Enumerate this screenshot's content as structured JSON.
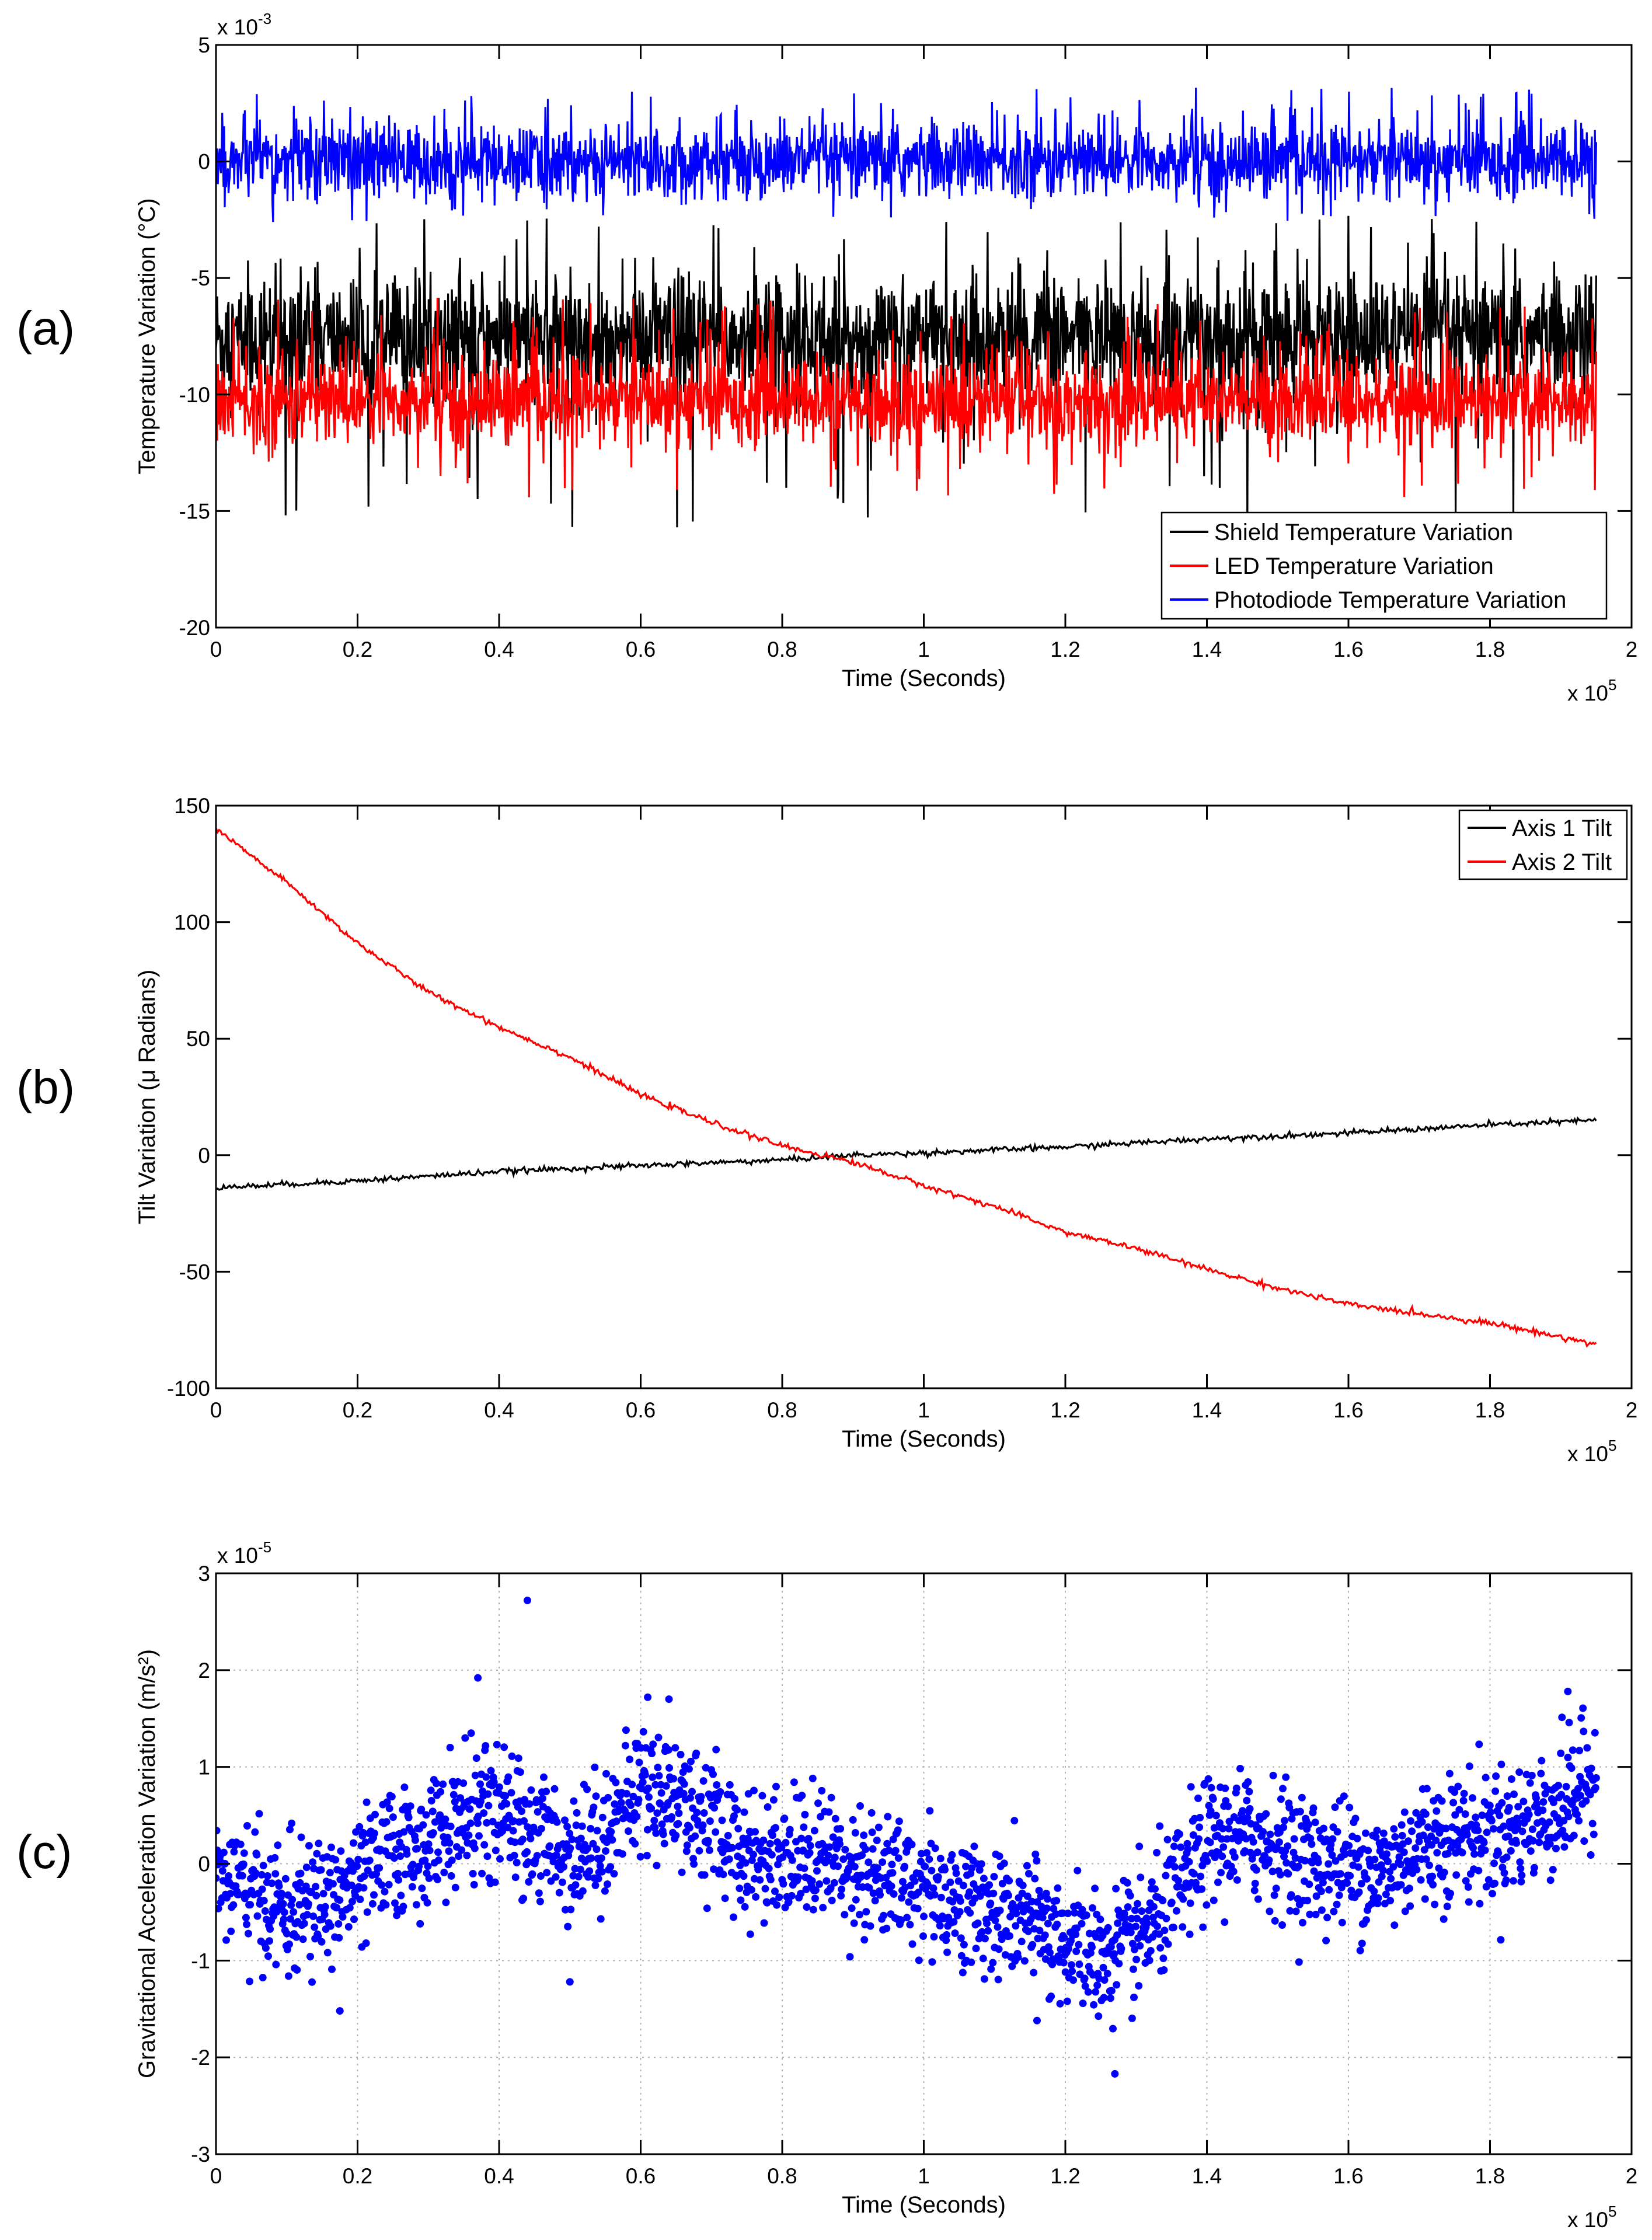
{
  "chart_data": [
    {
      "panel": "(a)",
      "type": "line",
      "title": "",
      "xlabel": "Time (Seconds)",
      "ylabel": "Temperature Variation (°C)",
      "x_multiplier": {
        "base": "x 10",
        "exp": "5"
      },
      "y_multiplier": {
        "base": "x 10",
        "exp": "-3"
      },
      "xlim": [
        0,
        2
      ],
      "ylim": [
        -20,
        5
      ],
      "x_ticks": [
        "0",
        "0.2",
        "0.4",
        "0.6",
        "0.8",
        "1",
        "1.2",
        "1.4",
        "1.6",
        "1.8",
        "2"
      ],
      "y_ticks": [
        "-20",
        "-15",
        "-10",
        "-5",
        "0",
        "5"
      ],
      "grid": false,
      "legend_position": "bottom-right",
      "x_end": 1.95,
      "series": [
        {
          "name": "Shield Temperature Variation",
          "color": "#000000",
          "mean": -7.6,
          "noise": 1.3,
          "spike_up": 5.5,
          "spike_down": 8.2
        },
        {
          "name": "LED Temperature Variation",
          "color": "#ff0000",
          "mean": -10.3,
          "noise": 0.95,
          "spike_up": 4.5,
          "spike_down": 4.2
        },
        {
          "name": "Photodiode Temperature Variation",
          "color": "#0000ff",
          "mean": 0.0,
          "noise": 0.8,
          "spike_up": 3.2,
          "spike_down": 2.6
        }
      ]
    },
    {
      "panel": "(b)",
      "type": "line",
      "title": "",
      "xlabel": "Time (Seconds)",
      "ylabel": "Tilt Variation (μ Radians)",
      "x_multiplier": {
        "base": "x 10",
        "exp": "5"
      },
      "xlim": [
        0,
        2
      ],
      "ylim": [
        -100,
        150
      ],
      "x_ticks": [
        "0",
        "0.2",
        "0.4",
        "0.6",
        "0.8",
        "1",
        "1.2",
        "1.4",
        "1.6",
        "1.8",
        "2"
      ],
      "y_ticks": [
        "-100",
        "-50",
        "0",
        "50",
        "100",
        "150"
      ],
      "grid": false,
      "legend_position": "top-right",
      "series": [
        {
          "name": "Axis 1 Tilt",
          "color": "#000000",
          "x": [
            0,
            0.2,
            0.4,
            0.6,
            0.8,
            0.9,
            1.0,
            1.2,
            1.4,
            1.6,
            1.8,
            1.95
          ],
          "y": [
            -14,
            -11,
            -7,
            -4.5,
            -2,
            0,
            1,
            3.5,
            7,
            9.5,
            13,
            15
          ]
        },
        {
          "name": "Axis 2 Tilt",
          "color": "#ff0000",
          "x": [
            0,
            0.1,
            0.2,
            0.3,
            0.4,
            0.5,
            0.6,
            0.7,
            0.8,
            0.9,
            1.0,
            1.1,
            1.2,
            1.3,
            1.4,
            1.5,
            1.6,
            1.7,
            1.8,
            1.9,
            1.95
          ],
          "y": [
            140,
            117,
            91,
            70,
            55,
            42,
            26,
            14,
            4,
            -3,
            -13,
            -22,
            -33,
            -40,
            -49,
            -57,
            -64,
            -68,
            -72,
            -78,
            -81
          ]
        }
      ]
    },
    {
      "panel": "(c)",
      "type": "scatter",
      "title": "",
      "xlabel": "Time (Seconds)",
      "ylabel": "Gravitational Acceleration Variation (m/s²)",
      "x_multiplier": {
        "base": "x 10",
        "exp": "5"
      },
      "y_multiplier": {
        "base": "x 10",
        "exp": "-5"
      },
      "xlim": [
        0,
        2
      ],
      "ylim": [
        -3,
        3
      ],
      "x_ticks": [
        "0",
        "0.2",
        "0.4",
        "0.6",
        "0.8",
        "1",
        "1.2",
        "1.4",
        "1.6",
        "1.8",
        "2"
      ],
      "y_ticks": [
        "-3",
        "-2",
        "-1",
        "0",
        "1",
        "2",
        "3"
      ],
      "grid": true,
      "series": [
        {
          "color": "#0000ff",
          "trend_x": [
            0,
            0.05,
            0.1,
            0.15,
            0.2,
            0.25,
            0.3,
            0.35,
            0.4,
            0.45,
            0.5,
            0.55,
            0.6,
            0.65,
            0.7,
            0.75,
            0.8,
            0.85,
            0.9,
            0.95,
            1.0,
            1.05,
            1.1,
            1.15,
            1.2,
            1.25,
            1.3,
            1.35,
            1.4,
            1.45,
            1.5,
            1.55,
            1.6,
            1.65,
            1.7,
            1.75,
            1.8,
            1.85,
            1.9,
            1.95
          ],
          "trend_y": [
            -0.1,
            -0.3,
            -0.5,
            -0.4,
            -0.2,
            0.1,
            0.2,
            0.5,
            0.5,
            0.3,
            0.1,
            0.3,
            0.8,
            0.7,
            0.4,
            0.1,
            0.1,
            0.1,
            0.0,
            -0.2,
            -0.2,
            -0.4,
            -0.5,
            -0.6,
            -0.8,
            -1.0,
            -0.8,
            -0.4,
            0.2,
            0.3,
            0.2,
            0.0,
            0.0,
            -0.1,
            0.2,
            0.3,
            0.3,
            0.4,
            0.6,
            0.9
          ],
          "noise": 0.33,
          "outliers_x": [
            0.44,
            0.37,
            0.61,
            0.64,
            1.91,
            1.27,
            0.175,
            0.5,
            1.16
          ],
          "outliers_y": [
            2.72,
            1.92,
            1.72,
            1.7,
            1.78,
            -2.17,
            -1.52,
            -1.22,
            -1.62
          ]
        }
      ]
    }
  ],
  "panel_labels": [
    "(a)",
    "(b)",
    "(c)"
  ]
}
